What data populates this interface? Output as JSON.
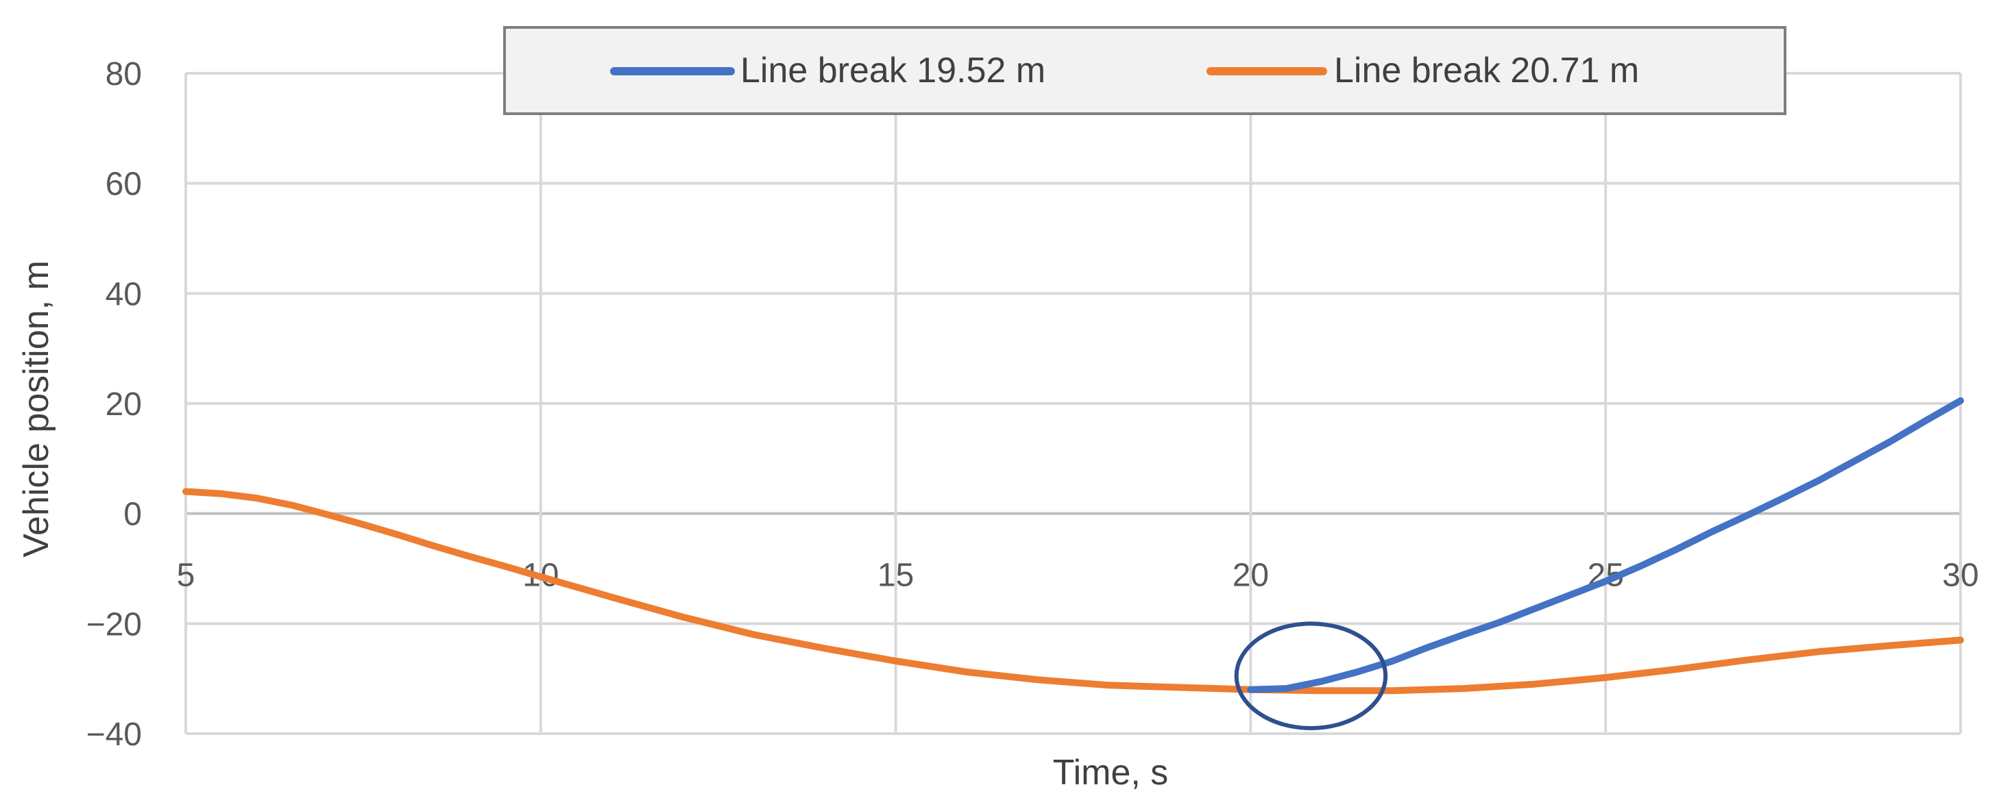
{
  "chart_data": {
    "type": "line",
    "xlabel": "Time, s",
    "ylabel": "Vehicle position, m",
    "xlim": [
      5,
      30
    ],
    "ylim": [
      -40,
      80
    ],
    "x_ticks": [
      5,
      10,
      15,
      20,
      25,
      30
    ],
    "y_ticks": [
      -40,
      -20,
      0,
      20,
      40,
      60,
      80
    ],
    "y_tick_labels": [
      "−40",
      "−20",
      "0",
      "20",
      "40",
      "60",
      "80"
    ],
    "grid": true,
    "legend_position": "top-center",
    "annotation": {
      "shape": "ellipse",
      "x": 20.85,
      "y": -29.5,
      "x_radius": 1.05,
      "y_radius": 9.5,
      "color": "#2f4f8f"
    },
    "series": [
      {
        "name": "Line break 19.52 m",
        "color": "#4472c4",
        "x": [
          20.0,
          20.5,
          21.0,
          21.5,
          22.0,
          22.5,
          23.0,
          23.5,
          24.0,
          24.5,
          25.0,
          25.5,
          26.0,
          26.5,
          27.0,
          27.5,
          28.0,
          28.5,
          29.0,
          29.5,
          30.0
        ],
        "y": [
          -32.0,
          -31.8,
          -30.5,
          -28.8,
          -26.8,
          -24.3,
          -22.0,
          -19.8,
          -17.3,
          -14.8,
          -12.3,
          -9.5,
          -6.5,
          -3.3,
          -0.3,
          2.8,
          6.0,
          9.5,
          13.0,
          16.8,
          20.5
        ]
      },
      {
        "name": "Line break 20.71 m",
        "color": "#ed7d31",
        "x": [
          5.0,
          5.5,
          6.0,
          6.5,
          7.0,
          7.5,
          8.0,
          8.5,
          9.0,
          9.5,
          10.0,
          11.0,
          12.0,
          13.0,
          14.0,
          15.0,
          16.0,
          17.0,
          18.0,
          19.0,
          20.0,
          21.0,
          22.0,
          23.0,
          24.0,
          25.0,
          26.0,
          27.0,
          28.0,
          29.0,
          30.0
        ],
        "y": [
          4.0,
          3.6,
          2.8,
          1.5,
          -0.2,
          -2.0,
          -3.9,
          -5.9,
          -7.8,
          -9.6,
          -11.5,
          -15.2,
          -18.8,
          -22.0,
          -24.5,
          -26.8,
          -28.8,
          -30.2,
          -31.2,
          -31.6,
          -32.0,
          -32.2,
          -32.2,
          -31.8,
          -31.0,
          -29.8,
          -28.3,
          -26.6,
          -25.1,
          -24.0,
          -23.0
        ]
      }
    ]
  }
}
